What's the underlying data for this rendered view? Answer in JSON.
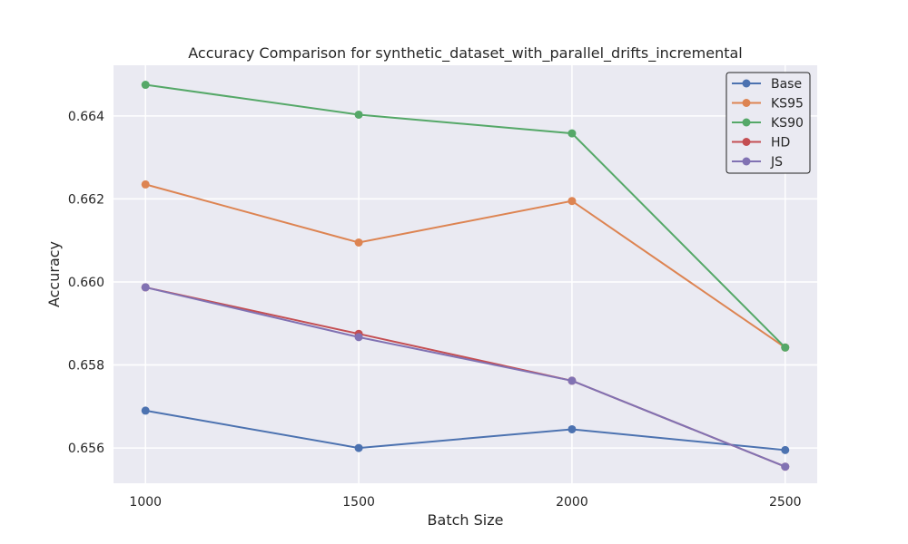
{
  "chart_data": {
    "type": "line",
    "title": "Accuracy Comparison for synthetic_dataset_with_parallel_drifts_incremental",
    "xlabel": "Batch Size",
    "ylabel": "Accuracy",
    "x": [
      1000,
      1500,
      2000,
      2500
    ],
    "xticks": [
      "1000",
      "1500",
      "2000",
      "2500"
    ],
    "yticks": [
      "0.656",
      "0.658",
      "0.660",
      "0.662",
      "0.664"
    ],
    "ytick_values": [
      0.656,
      0.658,
      0.66,
      0.662,
      0.664
    ],
    "xlim": [
      925,
      2575
    ],
    "ylim": [
      0.65515,
      0.66522
    ],
    "grid": true,
    "legend_position": "top-right",
    "background_color": "#eaeaf2",
    "series": [
      {
        "name": "Base",
        "color": "#4c72b0",
        "values": [
          0.6569,
          0.656,
          0.65645,
          0.65595
        ]
      },
      {
        "name": "KS95",
        "color": "#dd8452",
        "values": [
          0.66235,
          0.66095,
          0.66195,
          0.65842
        ]
      },
      {
        "name": "KS90",
        "color": "#55a868",
        "values": [
          0.66475,
          0.66403,
          0.66358,
          0.65842
        ]
      },
      {
        "name": "HD",
        "color": "#c44e52",
        "values": [
          0.65987,
          0.65875,
          0.65762,
          0.65555
        ]
      },
      {
        "name": "JS",
        "color": "#8172b3",
        "values": [
          0.65987,
          0.65867,
          0.65762,
          0.65555
        ]
      }
    ]
  }
}
